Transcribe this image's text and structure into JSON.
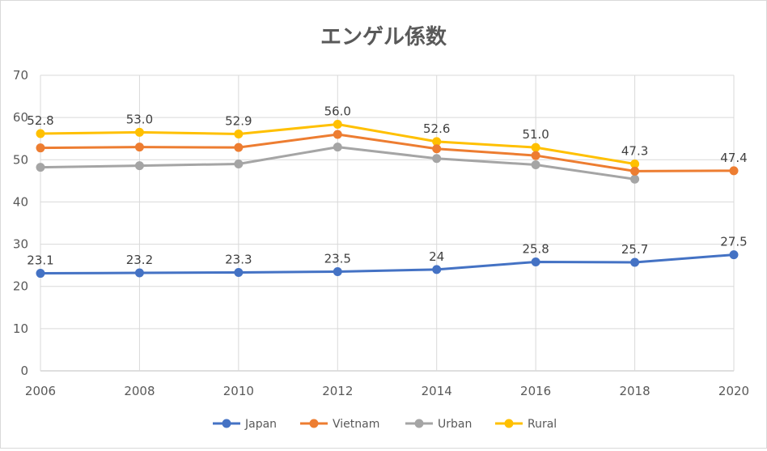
{
  "chart_data": {
    "type": "line",
    "title": "エンゲル係数",
    "xlabel": "",
    "ylabel": "",
    "x": [
      2006,
      2008,
      2010,
      2012,
      2014,
      2016,
      2018,
      2020
    ],
    "ylim": [
      0,
      70
    ],
    "yticks": [
      0,
      10,
      20,
      30,
      40,
      50,
      60,
      70
    ],
    "grid": true,
    "legend_position": "bottom",
    "series": [
      {
        "name": "Japan",
        "color": "#4472C4",
        "values": [
          23.1,
          23.2,
          23.3,
          23.5,
          24,
          25.8,
          25.7,
          27.5
        ],
        "labels": [
          "23.1",
          "23.2",
          "23.3",
          "23.5",
          "24",
          "25.8",
          "25.7",
          "27.5"
        ]
      },
      {
        "name": "Vietnam",
        "color": "#ED7D31",
        "values": [
          52.8,
          53.0,
          52.9,
          56.0,
          52.6,
          51.0,
          47.3,
          47.4
        ],
        "labels": [
          "52.8",
          "53.0",
          "52.9",
          "56.0",
          "52.6",
          "51.0",
          "47.3",
          "47.4"
        ]
      },
      {
        "name": "Urban",
        "color": "#A5A5A5",
        "values": [
          48.2,
          48.6,
          49.0,
          53.0,
          50.3,
          48.8,
          45.4,
          null
        ],
        "labels": []
      },
      {
        "name": "Rural",
        "color": "#FFC000",
        "values": [
          56.2,
          56.5,
          56.1,
          58.4,
          54.3,
          52.9,
          49.0,
          null
        ],
        "labels": []
      }
    ]
  }
}
